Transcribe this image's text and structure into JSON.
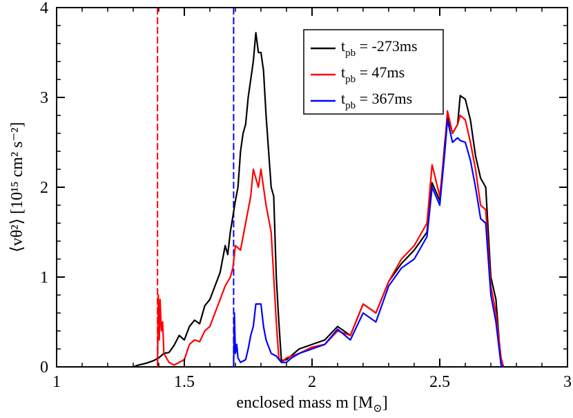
{
  "chart_data": {
    "type": "line",
    "title": "",
    "xlabel": "enclosed mass m [M",
    "xlabel_sub": "⊙",
    "xlabel_end": "]",
    "ylabel": "⟨vθ²⟩ [10¹⁵ cm² s⁻²]",
    "xlim": [
      1,
      3
    ],
    "ylim": [
      0,
      4
    ],
    "xticks": [
      1,
      1.5,
      2,
      2.5,
      3
    ],
    "xtick_labels": [
      "1",
      "1.5",
      "2",
      "2.5",
      "3"
    ],
    "yticks": [
      0,
      1,
      2,
      3,
      4
    ],
    "ytick_labels": [
      "0",
      "1",
      "2",
      "3",
      "4"
    ],
    "grid": false,
    "legend_position": "top-right",
    "vertical_lines": [
      {
        "x": 1.395,
        "color": "#ff0000",
        "style": "dashed"
      },
      {
        "x": 1.693,
        "color": "#0000ff",
        "style": "dashed"
      }
    ],
    "series": [
      {
        "name": "t_pb = -273ms",
        "label_main": "t",
        "label_sub": "pb",
        "label_value": " = -273ms",
        "color": "#000000",
        "points": [
          [
            1.3,
            0.0
          ],
          [
            1.32,
            0.02
          ],
          [
            1.35,
            0.04
          ],
          [
            1.38,
            0.07
          ],
          [
            1.4,
            0.1
          ],
          [
            1.42,
            0.15
          ],
          [
            1.44,
            0.16
          ],
          [
            1.46,
            0.24
          ],
          [
            1.48,
            0.35
          ],
          [
            1.5,
            0.3
          ],
          [
            1.52,
            0.45
          ],
          [
            1.54,
            0.52
          ],
          [
            1.56,
            0.48
          ],
          [
            1.58,
            0.68
          ],
          [
            1.6,
            0.75
          ],
          [
            1.62,
            0.9
          ],
          [
            1.64,
            1.05
          ],
          [
            1.66,
            1.35
          ],
          [
            1.67,
            1.25
          ],
          [
            1.68,
            1.5
          ],
          [
            1.7,
            1.85
          ],
          [
            1.71,
            2.0
          ],
          [
            1.72,
            2.4
          ],
          [
            1.73,
            2.6
          ],
          [
            1.74,
            2.7
          ],
          [
            1.75,
            3.0
          ],
          [
            1.76,
            3.2
          ],
          [
            1.77,
            3.4
          ],
          [
            1.78,
            3.72
          ],
          [
            1.79,
            3.5
          ],
          [
            1.8,
            3.5
          ],
          [
            1.81,
            3.3
          ],
          [
            1.82,
            2.8
          ],
          [
            1.84,
            2.0
          ],
          [
            1.85,
            1.9
          ],
          [
            1.86,
            1.0
          ],
          [
            1.87,
            0.5
          ],
          [
            1.88,
            0.07
          ],
          [
            1.9,
            0.08
          ],
          [
            1.95,
            0.2
          ],
          [
            2.0,
            0.25
          ],
          [
            2.05,
            0.3
          ],
          [
            2.1,
            0.45
          ],
          [
            2.15,
            0.35
          ],
          [
            2.2,
            0.7
          ],
          [
            2.25,
            0.6
          ],
          [
            2.3,
            0.95
          ],
          [
            2.35,
            1.15
          ],
          [
            2.4,
            1.3
          ],
          [
            2.45,
            1.5
          ],
          [
            2.47,
            2.05
          ],
          [
            2.5,
            1.85
          ],
          [
            2.52,
            2.5
          ],
          [
            2.53,
            2.8
          ],
          [
            2.55,
            2.6
          ],
          [
            2.57,
            2.7
          ],
          [
            2.58,
            3.02
          ],
          [
            2.6,
            2.98
          ],
          [
            2.62,
            2.75
          ],
          [
            2.64,
            2.35
          ],
          [
            2.66,
            2.1
          ],
          [
            2.68,
            2.0
          ],
          [
            2.7,
            1.0
          ],
          [
            2.72,
            0.75
          ],
          [
            2.74,
            0.02
          ],
          [
            2.75,
            0.0
          ]
        ]
      },
      {
        "name": "t_pb = 47ms",
        "label_main": "t",
        "label_sub": "pb",
        "label_value": " = 47ms",
        "color": "#ff0000",
        "points": [
          [
            1.395,
            0.0
          ],
          [
            1.398,
            0.8
          ],
          [
            1.402,
            0.3
          ],
          [
            1.405,
            0.75
          ],
          [
            1.41,
            0.4
          ],
          [
            1.415,
            0.5
          ],
          [
            1.42,
            0.15
          ],
          [
            1.44,
            0.05
          ],
          [
            1.46,
            0.02
          ],
          [
            1.48,
            0.05
          ],
          [
            1.5,
            0.08
          ],
          [
            1.52,
            0.25
          ],
          [
            1.54,
            0.3
          ],
          [
            1.56,
            0.28
          ],
          [
            1.58,
            0.4
          ],
          [
            1.6,
            0.45
          ],
          [
            1.62,
            0.6
          ],
          [
            1.64,
            0.75
          ],
          [
            1.66,
            0.9
          ],
          [
            1.68,
            1.0
          ],
          [
            1.69,
            1.1
          ],
          [
            1.7,
            1.35
          ],
          [
            1.72,
            1.3
          ],
          [
            1.74,
            1.6
          ],
          [
            1.76,
            1.9
          ],
          [
            1.77,
            2.2
          ],
          [
            1.78,
            2.1
          ],
          [
            1.79,
            2.0
          ],
          [
            1.8,
            2.2
          ],
          [
            1.82,
            1.8
          ],
          [
            1.84,
            1.5
          ],
          [
            1.86,
            0.5
          ],
          [
            1.87,
            0.1
          ],
          [
            1.88,
            0.05
          ],
          [
            1.9,
            0.1
          ],
          [
            1.95,
            0.15
          ],
          [
            2.0,
            0.22
          ],
          [
            2.05,
            0.25
          ],
          [
            2.1,
            0.4
          ],
          [
            2.15,
            0.35
          ],
          [
            2.2,
            0.7
          ],
          [
            2.25,
            0.6
          ],
          [
            2.3,
            0.95
          ],
          [
            2.35,
            1.2
          ],
          [
            2.4,
            1.35
          ],
          [
            2.45,
            1.6
          ],
          [
            2.47,
            2.25
          ],
          [
            2.5,
            1.9
          ],
          [
            2.52,
            2.45
          ],
          [
            2.53,
            2.85
          ],
          [
            2.55,
            2.6
          ],
          [
            2.57,
            2.7
          ],
          [
            2.58,
            2.8
          ],
          [
            2.6,
            2.75
          ],
          [
            2.62,
            2.5
          ],
          [
            2.64,
            2.2
          ],
          [
            2.66,
            1.8
          ],
          [
            2.68,
            1.75
          ],
          [
            2.7,
            0.9
          ],
          [
            2.72,
            0.6
          ],
          [
            2.74,
            0.1
          ],
          [
            2.75,
            0.0
          ]
        ]
      },
      {
        "name": "t_pb = 367ms",
        "label_main": "t",
        "label_sub": "pb",
        "label_value": " = 367ms",
        "color": "#0000ff",
        "points": [
          [
            1.693,
            0.0
          ],
          [
            1.696,
            0.6
          ],
          [
            1.7,
            0.15
          ],
          [
            1.705,
            0.25
          ],
          [
            1.71,
            0.1
          ],
          [
            1.72,
            0.05
          ],
          [
            1.74,
            0.08
          ],
          [
            1.75,
            0.2
          ],
          [
            1.76,
            0.35
          ],
          [
            1.77,
            0.45
          ],
          [
            1.78,
            0.7
          ],
          [
            1.8,
            0.7
          ],
          [
            1.81,
            0.45
          ],
          [
            1.82,
            0.3
          ],
          [
            1.84,
            0.15
          ],
          [
            1.86,
            0.12
          ],
          [
            1.88,
            0.05
          ],
          [
            1.9,
            0.05
          ],
          [
            1.92,
            0.1
          ],
          [
            1.95,
            0.15
          ],
          [
            2.0,
            0.2
          ],
          [
            2.05,
            0.25
          ],
          [
            2.1,
            0.42
          ],
          [
            2.15,
            0.3
          ],
          [
            2.2,
            0.6
          ],
          [
            2.25,
            0.5
          ],
          [
            2.3,
            0.9
          ],
          [
            2.35,
            1.1
          ],
          [
            2.4,
            1.2
          ],
          [
            2.45,
            1.45
          ],
          [
            2.47,
            2.0
          ],
          [
            2.5,
            1.8
          ],
          [
            2.52,
            2.4
          ],
          [
            2.53,
            2.75
          ],
          [
            2.55,
            2.5
          ],
          [
            2.57,
            2.55
          ],
          [
            2.58,
            2.52
          ],
          [
            2.6,
            2.5
          ],
          [
            2.62,
            2.3
          ],
          [
            2.64,
            2.0
          ],
          [
            2.66,
            1.65
          ],
          [
            2.68,
            1.6
          ],
          [
            2.7,
            0.8
          ],
          [
            2.72,
            0.5
          ],
          [
            2.74,
            0.02
          ],
          [
            2.75,
            0.0
          ]
        ]
      }
    ]
  }
}
